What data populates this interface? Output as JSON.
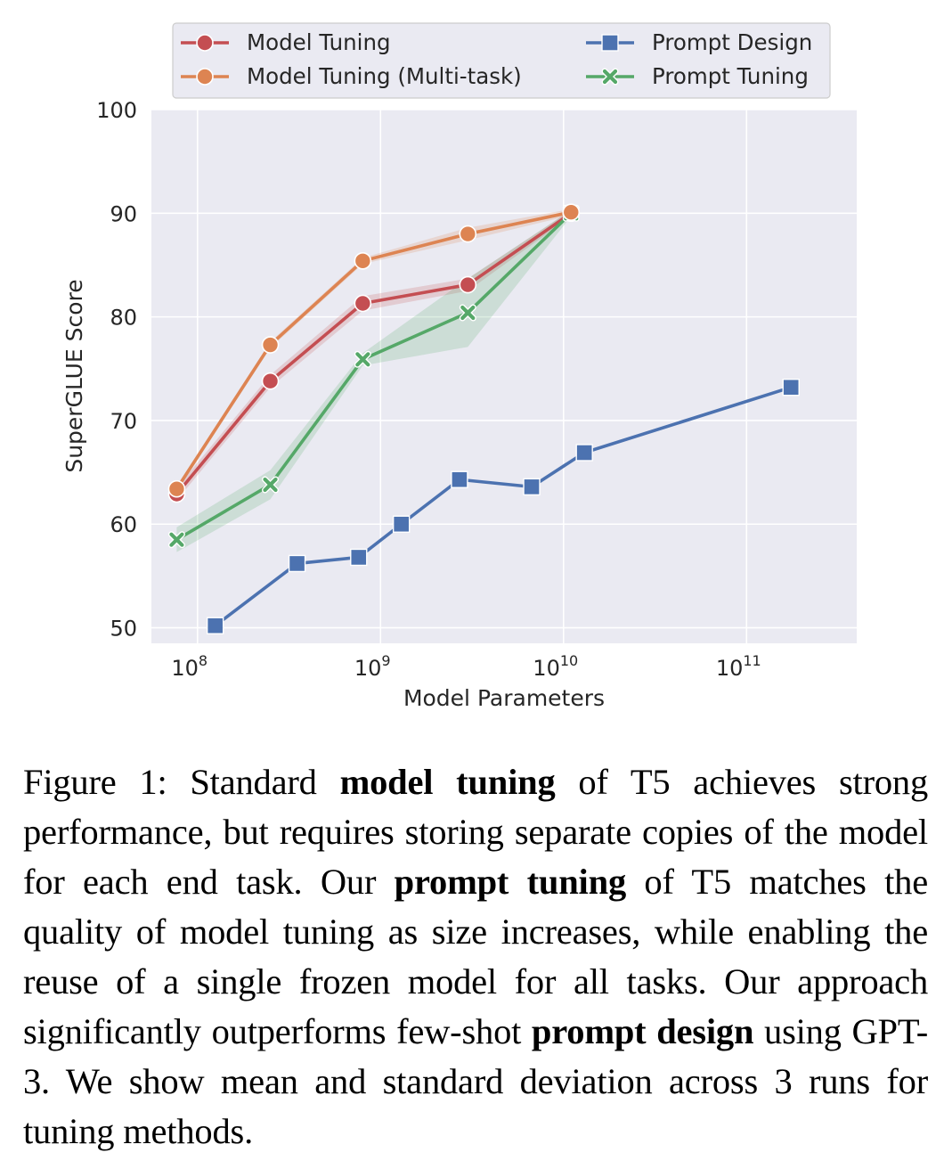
{
  "chart_data": {
    "type": "line",
    "xscale": "log",
    "xlabel": "Model Parameters",
    "ylabel": "SuperGLUE Score",
    "xlim": [
      56000000,
      400000000000
    ],
    "ylim": [
      48.5,
      100
    ],
    "yticks": [
      50,
      60,
      70,
      80,
      90,
      100
    ],
    "xticks": [
      {
        "value": 100000000,
        "base": "10",
        "exp": "8"
      },
      {
        "value": 1000000000,
        "base": "10",
        "exp": "9"
      },
      {
        "value": 10000000000,
        "base": "10",
        "exp": "10"
      },
      {
        "value": 100000000000,
        "base": "10",
        "exp": "11"
      }
    ],
    "grid": true,
    "legend_position": "top",
    "series": [
      {
        "name": "Model Tuning",
        "color": "#c44e52",
        "marker": "circle",
        "x": [
          77000000,
          250000000,
          800000000,
          3000000000,
          11000000000
        ],
        "y": [
          62.9,
          73.8,
          81.3,
          83.1,
          90.0
        ],
        "band": [
          0.6,
          0.6,
          0.7,
          0.6,
          0.3
        ]
      },
      {
        "name": "Model Tuning (Multi-task)",
        "color": "#dd8452",
        "marker": "circle",
        "x": [
          77000000,
          250000000,
          800000000,
          3000000000,
          11000000000
        ],
        "y": [
          63.4,
          77.3,
          85.4,
          88.0,
          90.1
        ],
        "band": [
          0.3,
          0.3,
          0.3,
          0.6,
          0.3
        ]
      },
      {
        "name": "Prompt Design",
        "color": "#4c72b0",
        "marker": "square",
        "x": [
          125000000,
          350000000,
          760000000,
          1300000000,
          2700000000,
          6700000000,
          13000000000,
          175000000000
        ],
        "y": [
          50.2,
          56.2,
          56.8,
          60.0,
          64.3,
          63.6,
          66.9,
          73.2
        ]
      },
      {
        "name": "Prompt Tuning",
        "color": "#55a868",
        "marker": "x",
        "x": [
          77000000,
          250000000,
          800000000,
          3000000000,
          11000000000
        ],
        "y": [
          58.5,
          63.8,
          75.9,
          80.4,
          90.0
        ],
        "band": [
          1.2,
          1.4,
          0.6,
          3.3,
          0.3
        ]
      }
    ]
  },
  "caption": {
    "prefix": "Figure 1: Standard ",
    "b1": "model tuning",
    "t1": " of T5 achieves strong performance, but requires storing separate copies of the model for each end task.  Our ",
    "b2": "prompt tuning",
    "t2": " of T5 matches the quality of model tuning as size increases, while enabling the reuse of a single frozen model for all tasks.  Our approach significantly outperforms few-shot ",
    "b3": "prompt design",
    "t3": " using GPT-3.  We show mean and standard deviation across 3 runs for tuning methods."
  }
}
